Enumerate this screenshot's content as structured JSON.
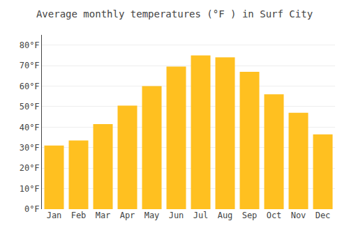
{
  "chart_data": {
    "type": "bar",
    "title": "Average monthly temperatures (°F ) in Surf City",
    "categories": [
      "Jan",
      "Feb",
      "Mar",
      "Apr",
      "May",
      "Jun",
      "Jul",
      "Aug",
      "Sep",
      "Oct",
      "Nov",
      "Dec"
    ],
    "values": [
      31,
      33.5,
      41.5,
      50.5,
      60,
      69.5,
      75,
      74,
      67,
      56,
      47,
      36.5
    ],
    "color": "#FFC020",
    "ylim": [
      0,
      85
    ],
    "yticks": [
      {
        "value": 0,
        "label": "0°F"
      },
      {
        "value": 10,
        "label": "10°F"
      },
      {
        "value": 20,
        "label": "20°F"
      },
      {
        "value": 30,
        "label": "30°F"
      },
      {
        "value": 40,
        "label": "40°F"
      },
      {
        "value": 50,
        "label": "50°F"
      },
      {
        "value": 60,
        "label": "60°F"
      },
      {
        "value": 70,
        "label": "70°F"
      },
      {
        "value": 80,
        "label": "80°F"
      }
    ],
    "grid": true
  }
}
